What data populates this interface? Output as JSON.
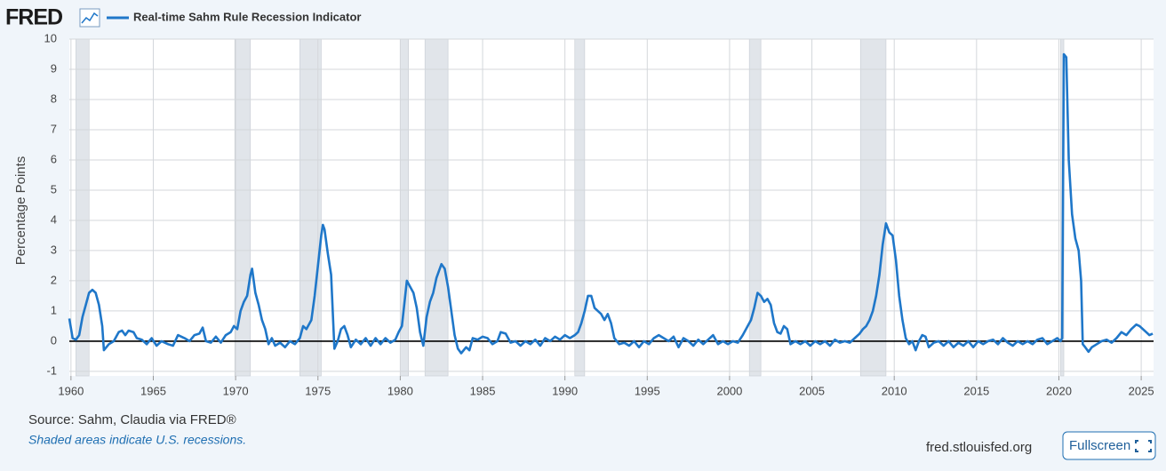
{
  "header": {
    "logo": "FRED"
  },
  "footer": {
    "source": "Source: Sahm, Claudia via FRED®",
    "note": "Shaded areas indicate U.S. recessions.",
    "link": "fred.stlouisfed.org",
    "button": "Fullscreen"
  },
  "chart_data": {
    "type": "line",
    "y_label": "Percentage Points",
    "xlim": [
      1959.9,
      2025.75
    ],
    "ylim": [
      -1.15,
      10
    ],
    "xticks": [
      1960,
      1965,
      1970,
      1975,
      1980,
      1985,
      1990,
      1995,
      2000,
      2005,
      2010,
      2015,
      2020,
      2025
    ],
    "yticks": [
      -1,
      0,
      1,
      2,
      3,
      4,
      5,
      6,
      7,
      8,
      9,
      10
    ],
    "grid": true,
    "recession_color": "#e1e5ea",
    "recessions": [
      [
        1960.3,
        1961.1
      ],
      [
        1969.95,
        1970.9
      ],
      [
        1973.9,
        1975.2
      ],
      [
        1980.0,
        1980.5
      ],
      [
        1981.5,
        1982.9
      ],
      [
        1990.6,
        1991.2
      ],
      [
        2001.2,
        2001.9
      ],
      [
        2007.95,
        2009.5
      ],
      [
        2020.1,
        2020.3
      ]
    ],
    "x": [
      1959.9,
      1960.1,
      1960.3,
      1960.5,
      1960.7,
      1960.9,
      1961.1,
      1961.3,
      1961.5,
      1961.7,
      1961.9,
      1962.0,
      1962.3,
      1962.6,
      1962.9,
      1963.1,
      1963.3,
      1963.5,
      1963.8,
      1964.0,
      1964.3,
      1964.6,
      1964.9,
      1965.2,
      1965.5,
      1965.9,
      1966.2,
      1966.5,
      1966.9,
      1967.2,
      1967.5,
      1967.8,
      1968.0,
      1968.2,
      1968.5,
      1968.8,
      1969.1,
      1969.4,
      1969.7,
      1969.9,
      1970.1,
      1970.3,
      1970.5,
      1970.7,
      1970.9,
      1971.0,
      1971.2,
      1971.4,
      1971.6,
      1971.8,
      1972.0,
      1972.2,
      1972.4,
      1972.7,
      1973.0,
      1973.3,
      1973.6,
      1973.9,
      1974.1,
      1974.3,
      1974.6,
      1974.8,
      1975.0,
      1975.2,
      1975.3,
      1975.4,
      1975.6,
      1975.8,
      1976.0,
      1976.2,
      1976.4,
      1976.6,
      1976.8,
      1977.0,
      1977.3,
      1977.6,
      1977.9,
      1978.2,
      1978.5,
      1978.8,
      1979.1,
      1979.4,
      1979.7,
      1979.9,
      1980.1,
      1980.3,
      1980.4,
      1980.6,
      1980.8,
      1981.0,
      1981.2,
      1981.4,
      1981.6,
      1981.8,
      1982.0,
      1982.2,
      1982.4,
      1982.5,
      1982.7,
      1982.9,
      1983.1,
      1983.3,
      1983.5,
      1983.7,
      1984.0,
      1984.2,
      1984.4,
      1984.7,
      1985.0,
      1985.3,
      1985.6,
      1985.9,
      1986.1,
      1986.4,
      1986.7,
      1987.0,
      1987.3,
      1987.6,
      1987.9,
      1988.2,
      1988.5,
      1988.8,
      1989.1,
      1989.4,
      1989.7,
      1990.0,
      1990.3,
      1990.6,
      1990.8,
      1991.0,
      1991.2,
      1991.4,
      1991.6,
      1991.8,
      1992.0,
      1992.2,
      1992.4,
      1992.6,
      1992.8,
      1993.0,
      1993.3,
      1993.6,
      1993.9,
      1994.2,
      1994.5,
      1994.8,
      1995.1,
      1995.4,
      1995.7,
      1996.0,
      1996.3,
      1996.6,
      1996.9,
      1997.2,
      1997.5,
      1997.8,
      1998.1,
      1998.4,
      1998.7,
      1999.0,
      1999.3,
      1999.6,
      1999.9,
      2000.2,
      2000.5,
      2000.8,
      2001.1,
      2001.3,
      2001.5,
      2001.7,
      2001.9,
      2002.1,
      2002.3,
      2002.5,
      2002.7,
      2002.9,
      2003.1,
      2003.3,
      2003.5,
      2003.7,
      2004.0,
      2004.3,
      2004.6,
      2004.9,
      2005.2,
      2005.5,
      2005.8,
      2006.1,
      2006.4,
      2006.7,
      2007.0,
      2007.3,
      2007.6,
      2007.9,
      2008.1,
      2008.3,
      2008.5,
      2008.7,
      2008.9,
      2009.1,
      2009.3,
      2009.5,
      2009.7,
      2009.9,
      2010.1,
      2010.3,
      2010.5,
      2010.7,
      2010.9,
      2011.1,
      2011.3,
      2011.5,
      2011.7,
      2011.9,
      2012.1,
      2012.4,
      2012.7,
      2013.0,
      2013.3,
      2013.6,
      2013.9,
      2014.2,
      2014.5,
      2014.8,
      2015.1,
      2015.4,
      2015.7,
      2016.0,
      2016.3,
      2016.6,
      2016.9,
      2017.2,
      2017.5,
      2017.8,
      2018.1,
      2018.4,
      2018.7,
      2019.0,
      2019.3,
      2019.6,
      2019.9,
      2020.1,
      2020.2,
      2020.3,
      2020.45,
      2020.6,
      2020.8,
      2021.0,
      2021.2,
      2021.35,
      2021.45,
      2021.6,
      2021.8,
      2022.0,
      2022.3,
      2022.6,
      2022.9,
      2023.2,
      2023.5,
      2023.8,
      2024.1,
      2024.4,
      2024.7,
      2024.9,
      2025.1,
      2025.3,
      2025.5,
      2025.7
    ],
    "series": [
      {
        "name": "Real-time Sahm Rule Recession Indicator",
        "color": "#1f77c9",
        "values": [
          0.75,
          0.1,
          0.05,
          0.2,
          0.8,
          1.2,
          1.6,
          1.7,
          1.6,
          1.2,
          0.5,
          -0.3,
          -0.1,
          0.0,
          0.3,
          0.35,
          0.2,
          0.35,
          0.3,
          0.1,
          0.05,
          -0.1,
          0.1,
          -0.15,
          0.0,
          -0.1,
          -0.15,
          0.2,
          0.1,
          0.0,
          0.2,
          0.25,
          0.45,
          0.0,
          -0.05,
          0.15,
          -0.05,
          0.2,
          0.3,
          0.5,
          0.4,
          1.0,
          1.3,
          1.5,
          2.2,
          2.4,
          1.6,
          1.2,
          0.7,
          0.4,
          -0.1,
          0.1,
          -0.15,
          -0.05,
          -0.2,
          0.0,
          -0.1,
          0.1,
          0.5,
          0.4,
          0.7,
          1.5,
          2.5,
          3.5,
          3.85,
          3.7,
          2.9,
          2.2,
          -0.25,
          0.0,
          0.4,
          0.5,
          0.2,
          -0.2,
          0.05,
          -0.1,
          0.1,
          -0.15,
          0.1,
          -0.1,
          0.1,
          -0.05,
          0.05,
          0.3,
          0.5,
          1.5,
          2.0,
          1.8,
          1.6,
          1.1,
          0.3,
          -0.15,
          0.8,
          1.3,
          1.6,
          2.1,
          2.4,
          2.55,
          2.4,
          1.8,
          1.0,
          0.2,
          -0.25,
          -0.4,
          -0.2,
          -0.3,
          0.1,
          0.05,
          0.15,
          0.1,
          -0.1,
          0.0,
          0.3,
          0.25,
          -0.05,
          0.0,
          -0.15,
          0.0,
          -0.1,
          0.05,
          -0.15,
          0.1,
          0.0,
          0.15,
          0.05,
          0.2,
          0.1,
          0.2,
          0.3,
          0.6,
          1.0,
          1.5,
          1.5,
          1.1,
          1.0,
          0.9,
          0.7,
          0.9,
          0.6,
          0.1,
          -0.1,
          -0.05,
          -0.15,
          0.0,
          -0.2,
          0.0,
          -0.1,
          0.1,
          0.2,
          0.1,
          0.0,
          0.15,
          -0.2,
          0.1,
          0.0,
          -0.15,
          0.05,
          -0.1,
          0.05,
          0.2,
          -0.1,
          0.0,
          -0.1,
          0.0,
          -0.05,
          0.2,
          0.5,
          0.7,
          1.1,
          1.6,
          1.5,
          1.3,
          1.4,
          1.2,
          0.6,
          0.3,
          0.25,
          0.5,
          0.4,
          -0.1,
          0.0,
          -0.1,
          0.0,
          -0.15,
          0.0,
          -0.1,
          0.0,
          -0.15,
          0.05,
          -0.05,
          0.0,
          -0.05,
          0.1,
          0.25,
          0.4,
          0.5,
          0.7,
          1.0,
          1.5,
          2.2,
          3.2,
          3.9,
          3.6,
          3.5,
          2.7,
          1.5,
          0.7,
          0.1,
          -0.1,
          0.0,
          -0.3,
          0.0,
          0.2,
          0.15,
          -0.2,
          -0.05,
          0.0,
          -0.15,
          0.0,
          -0.2,
          -0.05,
          -0.15,
          0.0,
          -0.2,
          0.0,
          -0.1,
          0.0,
          0.05,
          -0.1,
          0.1,
          -0.05,
          -0.15,
          0.0,
          -0.1,
          0.0,
          -0.1,
          0.05,
          0.1,
          -0.1,
          0.0,
          0.1,
          0.0,
          0.1,
          9.5,
          9.4,
          6.0,
          4.2,
          3.4,
          3.0,
          2.0,
          -0.1,
          -0.2,
          -0.35,
          -0.2,
          -0.1,
          0.0,
          0.05,
          -0.05,
          0.1,
          0.3,
          0.2,
          0.4,
          0.55,
          0.5,
          0.4,
          0.3,
          0.2,
          0.25
        ]
      }
    ]
  }
}
